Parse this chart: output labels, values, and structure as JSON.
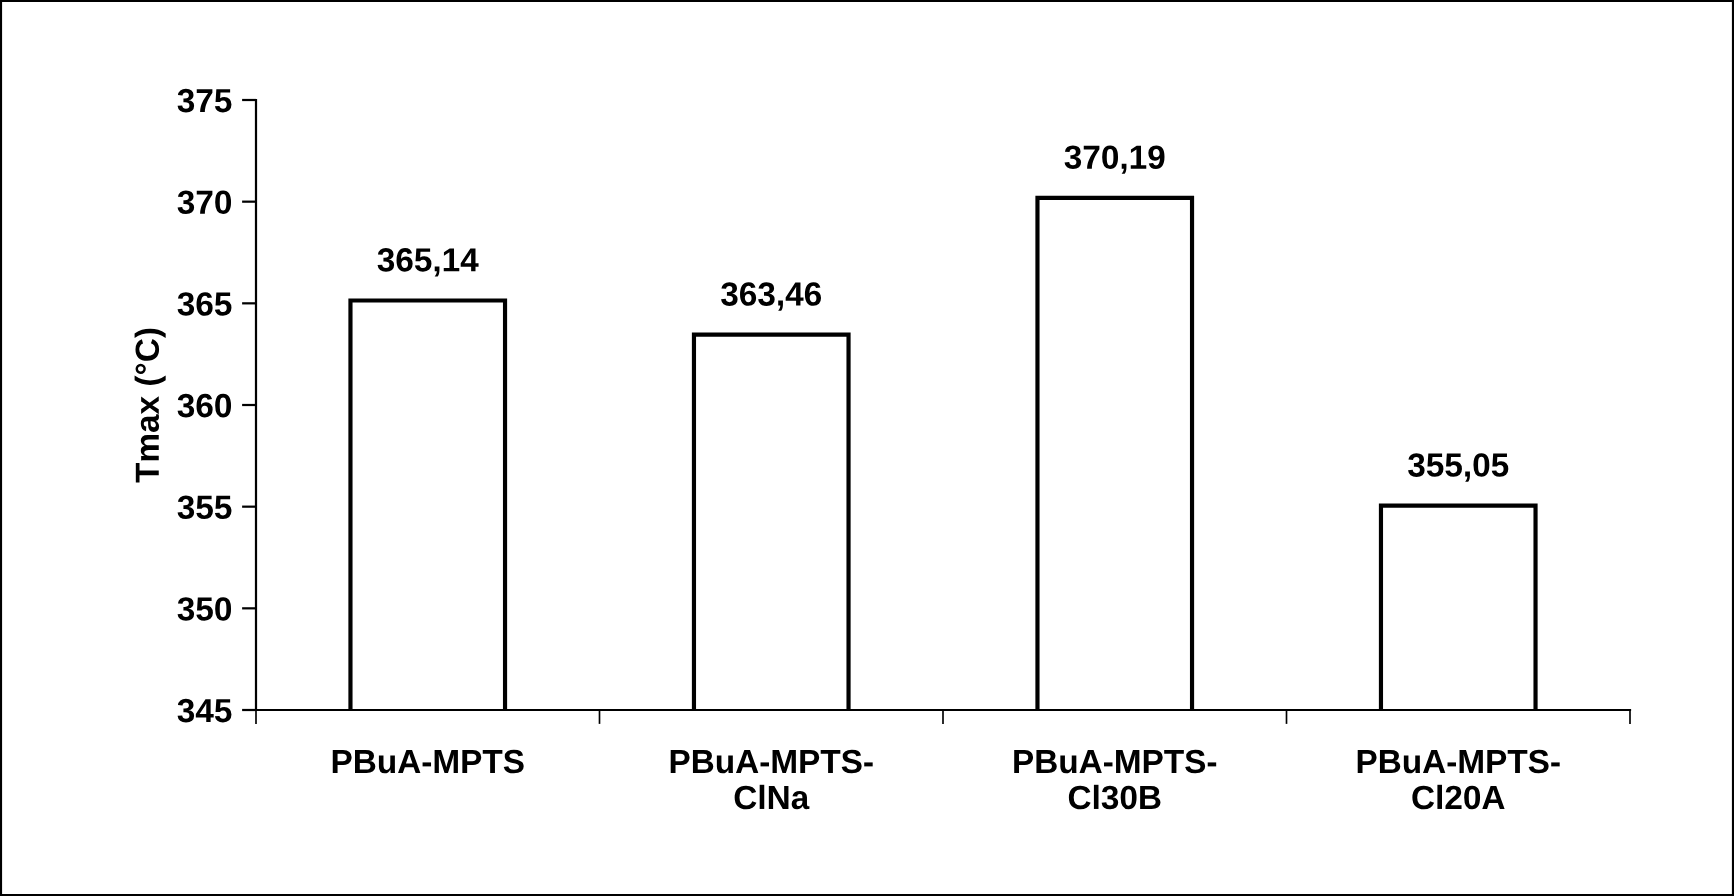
{
  "chart_data": {
    "type": "bar",
    "ylabel": "Tmax (°C)",
    "categories": [
      "PBuA-MPTS",
      "PBuA-MPTS-\nClNa",
      "PBuA-MPTS-\nCl30B",
      "PBuA-MPTS-\nCl20A"
    ],
    "values": [
      365.14,
      363.46,
      370.19,
      355.05
    ],
    "value_labels": [
      "365,14",
      "363,46",
      "370,19",
      "355,05"
    ],
    "color": "#ffffff",
    "ylim": [
      345,
      375
    ],
    "yticks": [
      345,
      350,
      355,
      360,
      365,
      370,
      375
    ],
    "grid": false
  }
}
